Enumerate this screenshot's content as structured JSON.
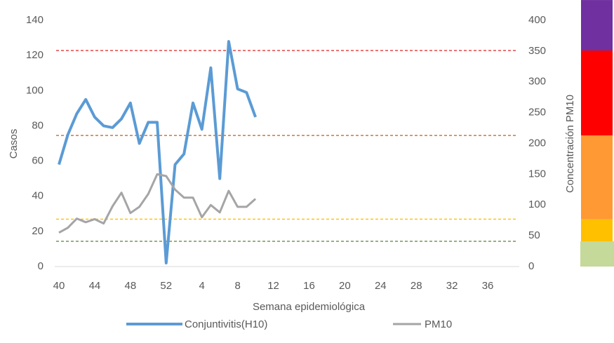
{
  "chart_data": {
    "type": "line",
    "x_label": "Semana epidemiológica",
    "y_label": "Casos",
    "y2_label": "Concentración PM10",
    "categories": [
      "40",
      null,
      null,
      null,
      "44",
      null,
      null,
      null,
      "48",
      null,
      null,
      null,
      "52",
      null,
      null,
      null,
      "4",
      null,
      null,
      null,
      "8",
      null,
      null,
      null,
      "12",
      null,
      null,
      null,
      "16",
      null,
      null,
      null,
      "20",
      null,
      null,
      null,
      "24",
      null,
      null,
      null,
      "28",
      null,
      null,
      null,
      "32",
      null,
      null,
      null,
      "36",
      null,
      null,
      null
    ],
    "series": [
      {
        "name": "Conjuntivitis(H10)",
        "color": "#5b9bd5",
        "axis": "y",
        "values": [
          58,
          75,
          87,
          95,
          85,
          80,
          79,
          84,
          93,
          70,
          82,
          82,
          2,
          58,
          64,
          93,
          78,
          113,
          50,
          128,
          101,
          99,
          85,
          null,
          null,
          null,
          null,
          null,
          null,
          null,
          null,
          null,
          null,
          null,
          null,
          null,
          null,
          null,
          null,
          null,
          null,
          null,
          null,
          null,
          null,
          null,
          null,
          null,
          null,
          null,
          null,
          null
        ]
      },
      {
        "name": "PM10",
        "color": "#a5a5a5",
        "axis": "y2",
        "values": [
          55,
          63,
          78,
          72,
          77,
          70,
          98,
          120,
          87,
          97,
          118,
          150,
          147,
          125,
          112,
          112,
          80,
          100,
          88,
          123,
          97,
          97,
          110,
          null,
          null,
          null,
          null,
          null,
          null,
          null,
          null,
          null,
          null,
          null,
          null,
          null,
          null,
          null,
          null,
          null,
          null,
          null,
          null,
          null,
          null,
          null,
          null,
          null,
          null,
          null,
          null,
          null
        ]
      }
    ],
    "ylim": [
      0,
      140
    ],
    "yticks": [
      0,
      20,
      40,
      60,
      80,
      100,
      120,
      140
    ],
    "y2lim": [
      0,
      400
    ],
    "y2ticks": [
      0,
      50,
      100,
      150,
      200,
      250,
      300,
      350,
      400
    ],
    "thresholds": [
      {
        "value": 351,
        "color": "#e02020"
      },
      {
        "value": 213,
        "color": "#c55a11"
      },
      {
        "value": 77,
        "color": "#ffc000"
      },
      {
        "value": 41,
        "color": "#548235"
      }
    ],
    "bands": [
      {
        "from": 0,
        "to": 41,
        "color": "#c5d99a"
      },
      {
        "from": 41,
        "to": 77,
        "color": "#ffc000"
      },
      {
        "from": 77,
        "to": 213,
        "color": "#ff9933"
      },
      {
        "from": 213,
        "to": 351,
        "color": "#ff0000"
      },
      {
        "from": 351,
        "to": 433,
        "color": "#7030a0"
      }
    ],
    "legend": "bottom"
  }
}
